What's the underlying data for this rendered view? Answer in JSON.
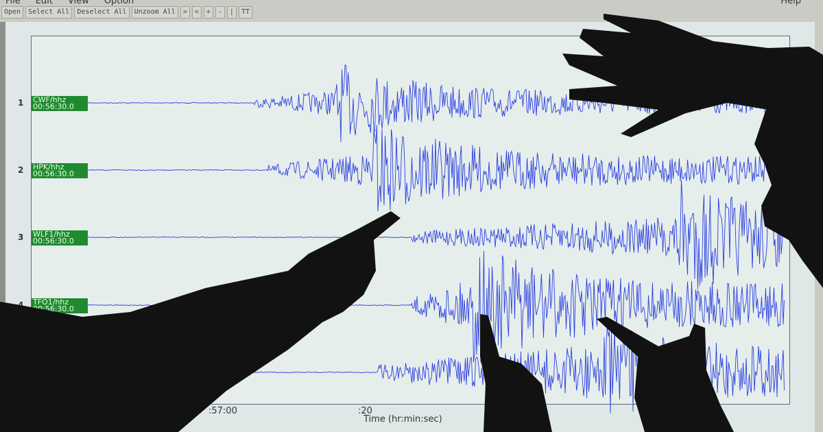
{
  "menu": {
    "items": [
      "File",
      "Edit",
      "View",
      "Option"
    ],
    "help": "Help"
  },
  "toolbar": {
    "buttons": [
      "Open",
      "Select All",
      "Deselect All",
      "Unzoom All",
      ">",
      "<",
      "+",
      "-",
      "|",
      "TT"
    ]
  },
  "traces": [
    {
      "number": "1",
      "station": "CWF/hhz",
      "start": "00:56:30.0"
    },
    {
      "number": "2",
      "station": "HPK/hhz",
      "start": "00:56:30.0"
    },
    {
      "number": "3",
      "station": "WLF1/hhz",
      "start": "00:56:30.0"
    },
    {
      "number": "4",
      "station": "TFO1/hhz",
      "start": "00:56:30.0"
    }
  ],
  "x_axis": {
    "ticks": [
      ":57:00",
      ":20"
    ],
    "label": "Time (hr:min:sec)"
  },
  "colors": {
    "trace": "#2a3fe0",
    "label_bg": "#1f8a2e",
    "silhouette": "#121212"
  }
}
